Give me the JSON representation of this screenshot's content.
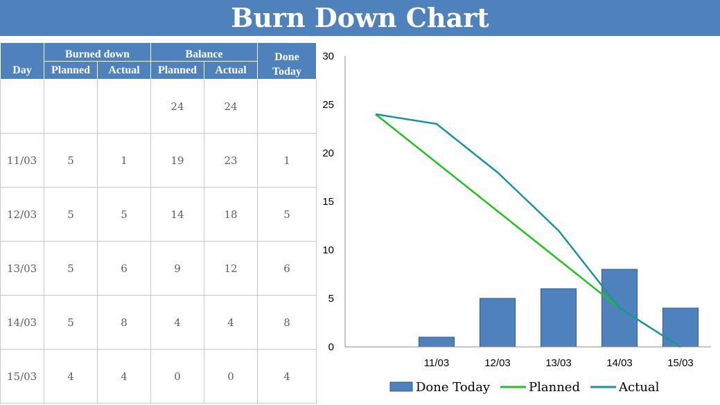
{
  "page_title": "Burn Down Chart",
  "table": {
    "headers": {
      "day": "Day",
      "burned_down": "Burned down",
      "balance": "Balance",
      "planned": "Planned",
      "actual": "Actual",
      "done_today_line1": "Done",
      "done_today_line2": "Today"
    },
    "rows": [
      {
        "day": "",
        "burned_planned": "",
        "burned_actual": "",
        "balance_planned": "24",
        "balance_actual": "24",
        "done_today": ""
      },
      {
        "day": "11/03",
        "burned_planned": "5",
        "burned_actual": "1",
        "balance_planned": "19",
        "balance_actual": "23",
        "done_today": "1"
      },
      {
        "day": "12/03",
        "burned_planned": "5",
        "burned_actual": "5",
        "balance_planned": "14",
        "balance_actual": "18",
        "done_today": "5"
      },
      {
        "day": "13/03",
        "burned_planned": "5",
        "burned_actual": "6",
        "balance_planned": "9",
        "balance_actual": "12",
        "done_today": "6"
      },
      {
        "day": "14/03",
        "burned_planned": "5",
        "burned_actual": "8",
        "balance_planned": "4",
        "balance_actual": "4",
        "done_today": "8"
      },
      {
        "day": "15/03",
        "burned_planned": "4",
        "burned_actual": "4",
        "balance_planned": "0",
        "balance_actual": "0",
        "done_today": "4"
      }
    ]
  },
  "chart_data": {
    "type": "bar",
    "categories": [
      "",
      "11/03",
      "12/03",
      "13/03",
      "14/03",
      "15/03"
    ],
    "ylim": [
      0,
      30
    ],
    "yticks": [
      0,
      5,
      10,
      15,
      20,
      25,
      30
    ],
    "grid": false,
    "legend_position": "bottom",
    "series": [
      {
        "name": "Done Today",
        "kind": "bar",
        "color": "#4f81bd",
        "values": [
          null,
          1,
          5,
          6,
          8,
          4
        ]
      },
      {
        "name": "Planned",
        "kind": "line",
        "color": "#1fc31f",
        "values": [
          24,
          19,
          14,
          9,
          4,
          0
        ]
      },
      {
        "name": "Actual",
        "kind": "line",
        "color": "#17959a",
        "values": [
          24,
          23,
          18,
          12,
          4,
          0
        ]
      }
    ]
  }
}
